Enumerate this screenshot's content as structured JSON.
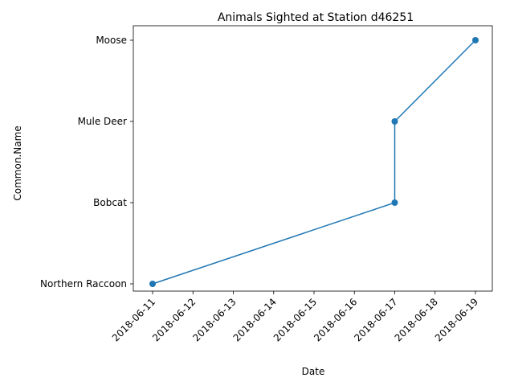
{
  "chart_data": {
    "type": "line",
    "title": "Animals Sighted at Station d46251",
    "xlabel": "Date",
    "ylabel": "Common.Name",
    "x_ticks": [
      "2018-06-11",
      "2018-06-12",
      "2018-06-13",
      "2018-06-14",
      "2018-06-15",
      "2018-06-16",
      "2018-06-17",
      "2018-06-18",
      "2018-06-19"
    ],
    "y_categories": [
      "Northern Raccoon",
      "Bobcat",
      "Mule Deer",
      "Moose"
    ],
    "series": [
      {
        "color": "#1f77b4",
        "marker": "circle",
        "points": [
          {
            "x": "2018-06-11",
            "y": "Northern Raccoon"
          },
          {
            "x": "2018-06-17",
            "y": "Bobcat"
          },
          {
            "x": "2018-06-17",
            "y": "Mule Deer"
          },
          {
            "x": "2018-06-19",
            "y": "Moose"
          }
        ]
      }
    ],
    "grid": false,
    "legend": "none"
  }
}
